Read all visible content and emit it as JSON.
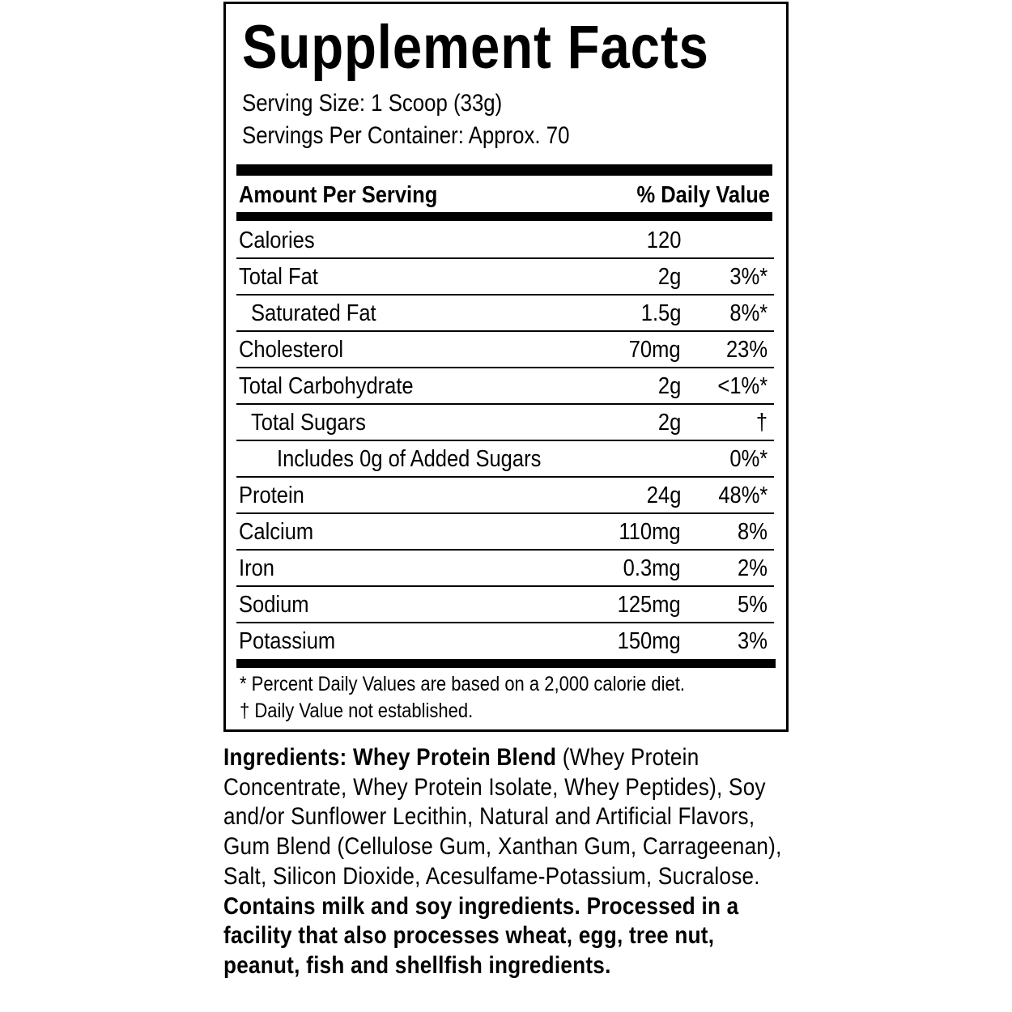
{
  "title": "Supplement Facts",
  "serving_size": "Serving Size: 1 Scoop (33g)",
  "servings_per_container": "Servings Per Container: Approx. 70",
  "header": {
    "amount": "Amount Per Serving",
    "dv": "% Daily Value"
  },
  "rows": [
    {
      "label": "Calories",
      "amount": "120",
      "dv": "",
      "indent": 0
    },
    {
      "label": "Total Fat",
      "amount": "2g",
      "dv": "3%*",
      "indent": 0
    },
    {
      "label": "Saturated Fat",
      "amount": "1.5g",
      "dv": "8%*",
      "indent": 1
    },
    {
      "label": "Cholesterol",
      "amount": "70mg",
      "dv": "23%",
      "indent": 0
    },
    {
      "label": "Total Carbohydrate",
      "amount": "2g",
      "dv": "<1%*",
      "indent": 0
    },
    {
      "label": "Total Sugars",
      "amount": "2g",
      "dv": "†",
      "indent": 1
    },
    {
      "label": "Includes 0g of Added Sugars",
      "amount": "",
      "dv": "0%*",
      "indent": 2
    },
    {
      "label": "Protein",
      "amount": "24g",
      "dv": "48%*",
      "indent": 0
    },
    {
      "label": "Calcium",
      "amount": "110mg",
      "dv": "8%",
      "indent": 0
    },
    {
      "label": "Iron",
      "amount": "0.3mg",
      "dv": "2%",
      "indent": 0
    },
    {
      "label": "Sodium",
      "amount": "125mg",
      "dv": "5%",
      "indent": 0
    },
    {
      "label": "Potassium",
      "amount": "150mg",
      "dv": "3%",
      "indent": 0
    }
  ],
  "footnotes": [
    "* Percent Daily Values are based on a 2,000 calorie diet.",
    "† Daily Value not established."
  ],
  "ingredients": {
    "label": "Ingredients: ",
    "blend": "Whey Protein Blend",
    "text": " (Whey Protein Concentrate, Whey Protein Isolate, Whey Peptides), Soy and/or Sunflower Lecithin, Natural and Artificial Flavors, Gum Blend (Cellulose Gum, Xanthan Gum, Carrageenan), Salt, Silicon Dioxide, Acesulfame-Potassium, Sucralose. ",
    "allergen": "Contains milk and soy ingredients. Processed in a facility that also processes wheat, egg, tree nut, peanut, fish and shellfish ingredients."
  }
}
